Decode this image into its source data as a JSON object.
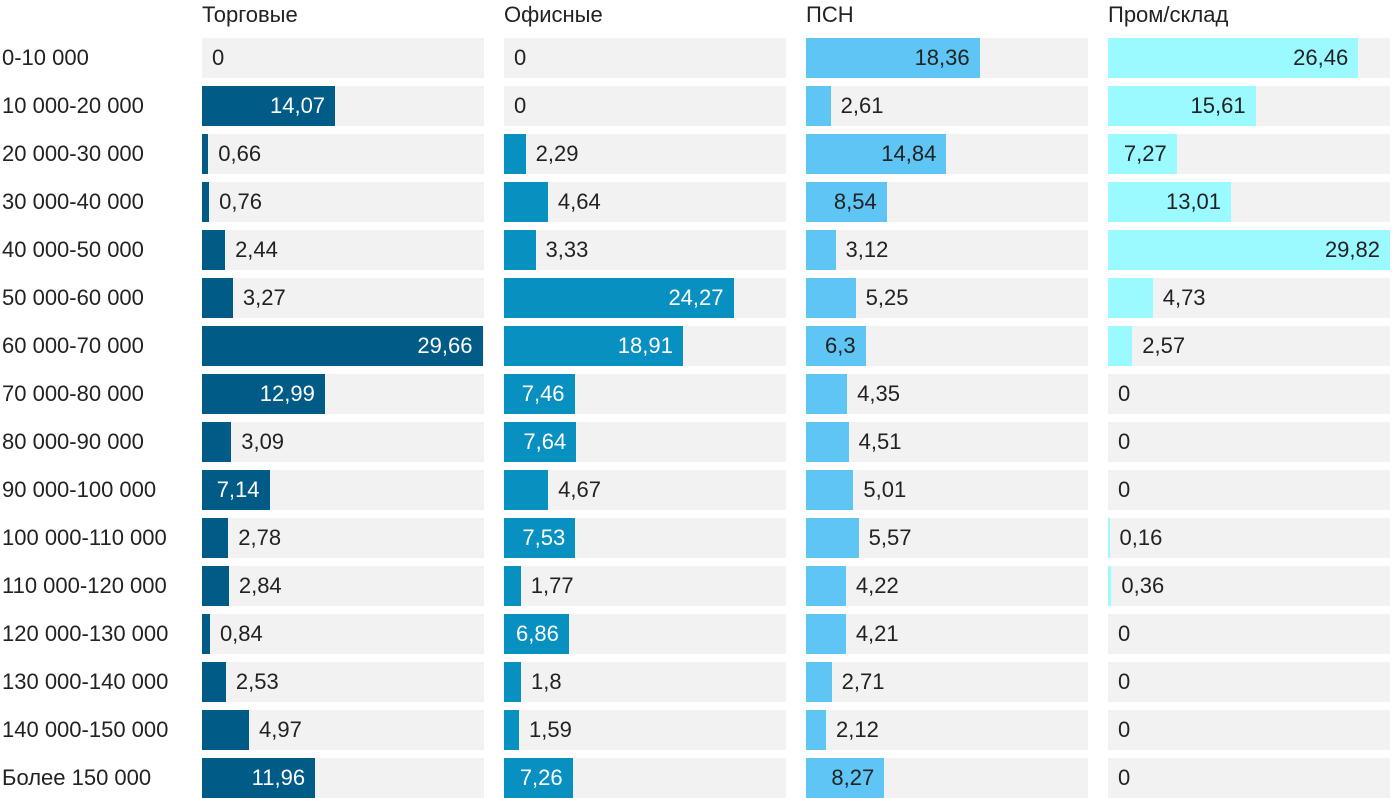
{
  "chart_data": {
    "type": "bar",
    "layout": "small-multiples-horizontal",
    "title": "",
    "xlabel": "",
    "ylabel": "",
    "xlim": [
      0,
      29.82
    ],
    "grid": false,
    "categories": [
      "0-10 000",
      "10 000-20 000",
      "20 000-30 000",
      "30 000-40 000",
      "40 000-50 000",
      "50 000-60 000",
      "60 000-70 000",
      "70 000-80 000",
      "80 000-90 000",
      "90 000-100 000",
      "100 000-110 000",
      "110 000-120 000",
      "120 000-130 000",
      "130 000-140 000",
      "140 000-150 000",
      "Более 150 000"
    ],
    "series": [
      {
        "name": "Торговые",
        "color": "#005b87",
        "text_on_fill": "#ffffff",
        "values": [
          0,
          14.07,
          0.66,
          0.76,
          2.44,
          3.27,
          29.66,
          12.99,
          3.09,
          7.14,
          2.78,
          2.84,
          0.84,
          2.53,
          4.97,
          11.96
        ],
        "labels": [
          "0",
          "14,07",
          "0,66",
          "0,76",
          "2,44",
          "3,27",
          "29,66",
          "12,99",
          "3,09",
          "7,14",
          "2,78",
          "2,84",
          "0,84",
          "2,53",
          "4,97",
          "11,96"
        ]
      },
      {
        "name": "Офисные",
        "color": "#0891c0",
        "text_on_fill": "#ffffff",
        "values": [
          0,
          0,
          2.29,
          4.64,
          3.33,
          24.27,
          18.91,
          7.46,
          7.64,
          4.67,
          7.53,
          1.77,
          6.86,
          1.8,
          1.59,
          7.26
        ],
        "labels": [
          "0",
          "0",
          "2,29",
          "4,64",
          "3,33",
          "24,27",
          "18,91",
          "7,46",
          "7,64",
          "4,67",
          "7,53",
          "1,77",
          "6,86",
          "1,8",
          "1,59",
          "7,26"
        ]
      },
      {
        "name": "ПСН",
        "color": "#5ec5f4",
        "text_on_fill": "#222222",
        "values": [
          18.36,
          2.61,
          14.84,
          8.54,
          3.12,
          5.25,
          6.3,
          4.35,
          4.51,
          5.01,
          5.57,
          4.22,
          4.21,
          2.71,
          2.12,
          8.27
        ],
        "labels": [
          "18,36",
          "2,61",
          "14,84",
          "8,54",
          "3,12",
          "5,25",
          "6,3",
          "4,35",
          "4,51",
          "5,01",
          "5,57",
          "4,22",
          "4,21",
          "2,71",
          "2,12",
          "8,27"
        ]
      },
      {
        "name": "Пром/склад",
        "color": "#9afaff",
        "text_on_fill": "#222222",
        "values": [
          26.46,
          15.61,
          7.27,
          13.01,
          29.82,
          4.73,
          2.57,
          0,
          0,
          0,
          0.16,
          0.36,
          0,
          0,
          0,
          0
        ],
        "labels": [
          "26,46",
          "15,61",
          "7,27",
          "13,01",
          "29,82",
          "4,73",
          "2,57",
          "0",
          "0",
          "0",
          "0,16",
          "0,36",
          "0",
          "0",
          "0",
          "0"
        ]
      }
    ]
  }
}
